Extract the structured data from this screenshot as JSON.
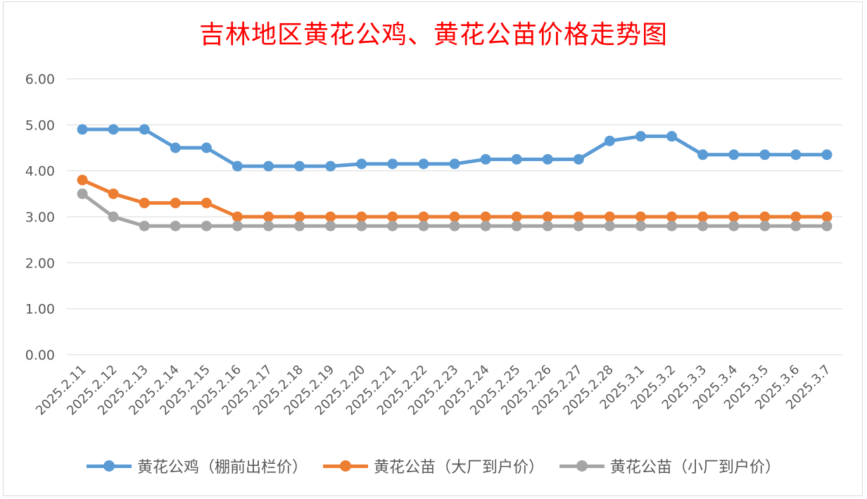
{
  "chart_data": {
    "type": "line",
    "title": "吉林地区黄花公鸡、黄花公苗价格走势图",
    "xlabel": "",
    "ylabel": "",
    "ylim": [
      0,
      6
    ],
    "yticks": [
      "0.00",
      "1.00",
      "2.00",
      "3.00",
      "4.00",
      "5.00",
      "6.00"
    ],
    "grid": true,
    "legend_position": "bottom",
    "categories": [
      "2025.2.11",
      "2025.2.12",
      "2025.2.13",
      "2025.2.14",
      "2025.2.15",
      "2025.2.16",
      "2025.2.17",
      "2025.2.18",
      "2025.2.19",
      "2025.2.20",
      "2025.2.21",
      "2025.2.22",
      "2025.2.23",
      "2025.2.24",
      "2025.2.25",
      "2025.2.26",
      "2025.2.27",
      "2025.2.28",
      "2025.3.1",
      "2025.3.2",
      "2025.3.3",
      "2025.3.4",
      "2025.3.5",
      "2025.3.6",
      "2025.3.7"
    ],
    "series": [
      {
        "name": "黄花公鸡（棚前出栏价）",
        "color": "#5b9bd5",
        "values": [
          4.9,
          4.9,
          4.9,
          4.5,
          4.5,
          4.1,
          4.1,
          4.1,
          4.1,
          4.15,
          4.15,
          4.15,
          4.15,
          4.25,
          4.25,
          4.25,
          4.25,
          4.65,
          4.75,
          4.75,
          4.35,
          4.35,
          4.35,
          4.35,
          4.35
        ]
      },
      {
        "name": "黄花公苗（大厂到户价）",
        "color": "#ed7d31",
        "values": [
          3.8,
          3.5,
          3.3,
          3.3,
          3.3,
          3.0,
          3.0,
          3.0,
          3.0,
          3.0,
          3.0,
          3.0,
          3.0,
          3.0,
          3.0,
          3.0,
          3.0,
          3.0,
          3.0,
          3.0,
          3.0,
          3.0,
          3.0,
          3.0,
          3.0
        ]
      },
      {
        "name": "黄花公苗（小厂到户价）",
        "color": "#a5a5a5",
        "values": [
          3.5,
          3.0,
          2.8,
          2.8,
          2.8,
          2.8,
          2.8,
          2.8,
          2.8,
          2.8,
          2.8,
          2.8,
          2.8,
          2.8,
          2.8,
          2.8,
          2.8,
          2.8,
          2.8,
          2.8,
          2.8,
          2.8,
          2.8,
          2.8,
          2.8
        ]
      }
    ]
  }
}
